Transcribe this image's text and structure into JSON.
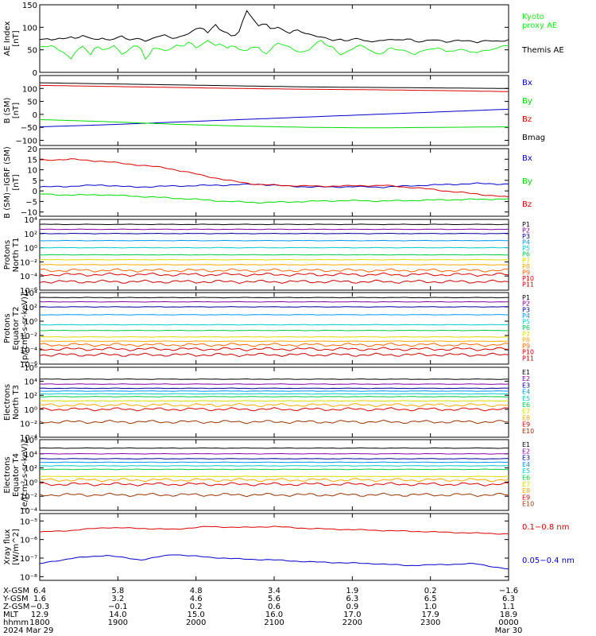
{
  "colors": {
    "black": "#000000",
    "green": "#00dd00",
    "bright_green": "#22ee22",
    "blue": "#0000cc",
    "red": "#dd0000",
    "purple": "#8800aa",
    "navy": "#000099",
    "dodger": "#0099ff",
    "cyan": "#00cccc",
    "teal_green": "#00cc44",
    "yellow": "#dddd00",
    "gold": "#ffaa00",
    "orange": "#ff6600",
    "brown": "#993300",
    "crimson": "#cc0000"
  },
  "chart_data": [
    {
      "type": "line",
      "ylabel": "AE Index\n[nT]",
      "ylim": [
        0,
        150
      ],
      "yticks": [
        "150",
        "100",
        "50",
        "0"
      ],
      "ytick_values": [
        150,
        100,
        50,
        0
      ],
      "log": false,
      "series": [
        {
          "name": "Kyoto\nproxy AE",
          "color": "bright_green",
          "values": [
            57,
            55,
            60,
            48,
            45,
            30,
            52,
            58,
            35,
            60,
            50,
            55,
            60,
            40,
            45,
            58,
            60,
            25,
            55,
            52,
            48,
            50,
            62,
            58,
            70,
            55,
            60,
            72,
            58,
            65,
            55,
            60,
            50,
            45,
            58,
            55,
            40,
            52,
            65,
            60,
            55,
            48,
            45,
            50,
            62,
            70,
            58,
            55,
            40,
            45,
            52,
            60,
            55,
            48,
            40,
            45,
            55,
            50,
            48,
            45,
            40,
            48,
            52,
            50,
            55,
            45,
            48,
            52,
            50,
            45,
            42,
            50,
            48,
            55,
            60,
            58
          ]
        },
        {
          "name": "Themis AE",
          "color": "black",
          "values": [
            72,
            75,
            70,
            78,
            74,
            80,
            73,
            82,
            76,
            72,
            78,
            70,
            75,
            80,
            72,
            74,
            76,
            70,
            74,
            80,
            82,
            76,
            78,
            82,
            88,
            95,
            100,
            85,
            110,
            92,
            88,
            78,
            90,
            140,
            120,
            105,
            110,
            95,
            100,
            92,
            88,
            96,
            90,
            84,
            80,
            78,
            75,
            72,
            74,
            70,
            72,
            75,
            70,
            68,
            72,
            70,
            74,
            70,
            72,
            76,
            70,
            68,
            70,
            72,
            70,
            68,
            70,
            72,
            70,
            68,
            66,
            70,
            72,
            70,
            68,
            72
          ]
        }
      ]
    },
    {
      "type": "line",
      "ylabel": "B (SM)\n[nT]",
      "ylim": [
        -120,
        150
      ],
      "yticks": [
        "100",
        "50",
        "0",
        "−50",
        "−100"
      ],
      "ytick_values": [
        100,
        50,
        0,
        -50,
        -100
      ],
      "log": false,
      "series": [
        {
          "name": "Bx",
          "color": "blue",
          "values": [
            -48,
            -40,
            -30,
            -20,
            -10,
            0,
            10,
            20
          ]
        },
        {
          "name": "By",
          "color": "green",
          "values": [
            -20,
            -28,
            -38,
            -45,
            -50,
            -52,
            -50,
            -48
          ]
        },
        {
          "name": "Bz",
          "color": "red",
          "values": [
            112,
            108,
            104,
            100,
            97,
            95,
            92,
            88
          ]
        },
        {
          "name": "Bmag",
          "color": "black",
          "values": [
            122,
            118,
            114,
            110,
            106,
            104,
            102,
            100
          ]
        }
      ]
    },
    {
      "type": "line",
      "ylabel": "B (SM)−IGRF (SM)\n[nT]",
      "ylim": [
        -12,
        20
      ],
      "yticks": [
        "20",
        "15",
        "10",
        "5",
        "0",
        "−5",
        "−10"
      ],
      "ytick_values": [
        20,
        15,
        10,
        5,
        0,
        -5,
        -10
      ],
      "log": false,
      "series": [
        {
          "name": "Bx",
          "color": "blue",
          "values": [
            1.8,
            2.2,
            2.8,
            1.8,
            2.2,
            2.5,
            2.8,
            3.2,
            2.2,
            1.8,
            2.0,
            1.8,
            2.5,
            3.0,
            3.5,
            3.2
          ]
        },
        {
          "name": "By",
          "color": "green",
          "values": [
            -1.5,
            -2.0,
            -1.8,
            -2.5,
            -3.2,
            -4.0,
            -5.0,
            -5.5,
            -5.2,
            -4.8,
            -4.6,
            -4.8,
            -4.5,
            -4.2,
            -4.0,
            -3.8
          ]
        },
        {
          "name": "Bz",
          "color": "red",
          "values": [
            14.5,
            15.0,
            14.0,
            12.5,
            11.0,
            8.0,
            5.0,
            3.0,
            2.5,
            2.2,
            2.4,
            2.6,
            1.5,
            0.0,
            -1.5,
            -3.0
          ]
        }
      ]
    },
    {
      "type": "line",
      "ylabel": "Protons\nNorth T1",
      "ylim": [
        -6,
        4
      ],
      "yticks": [
        "10⁴",
        "10²",
        "10⁰",
        "10⁻²",
        "10⁻⁴",
        "10⁻⁶"
      ],
      "ytick_values": [
        4,
        2,
        0,
        -2,
        -4,
        -6
      ],
      "log": true,
      "series": [
        {
          "name": "P1",
          "color": "black",
          "values": [
            3.3
          ]
        },
        {
          "name": "P2",
          "color": "purple",
          "values": [
            2.6
          ]
        },
        {
          "name": "P3",
          "color": "navy",
          "values": [
            2.0
          ]
        },
        {
          "name": "P4",
          "color": "dodger",
          "values": [
            1.0
          ]
        },
        {
          "name": "P5",
          "color": "cyan",
          "values": [
            0.0
          ]
        },
        {
          "name": "P6",
          "color": "teal_green",
          "values": [
            -1.0
          ]
        },
        {
          "name": "P7",
          "color": "yellow",
          "values": [
            -1.7
          ]
        },
        {
          "name": "P8",
          "color": "gold",
          "values": [
            -2.4
          ]
        },
        {
          "name": "P9",
          "color": "orange",
          "values": [
            -3.2
          ]
        },
        {
          "name": "P10",
          "color": "red",
          "values": [
            -3.8
          ]
        },
        {
          "name": "P11",
          "color": "crimson",
          "values": [
            -4.8
          ]
        }
      ]
    },
    {
      "type": "line",
      "ylabel": "Protons\nEquator T2\n[p/(cm²-s-sr-keV)]",
      "ylim": [
        -6,
        4
      ],
      "yticks": [
        "10⁴",
        "10²",
        "10⁰",
        "10⁻²",
        "10⁻⁴",
        "10⁻⁶"
      ],
      "ytick_values": [
        4,
        2,
        0,
        -2,
        -4,
        -6
      ],
      "log": true,
      "series": [
        {
          "name": "P1",
          "color": "black",
          "values": [
            3.3
          ]
        },
        {
          "name": "P2",
          "color": "purple",
          "values": [
            2.7
          ]
        },
        {
          "name": "P3",
          "color": "navy",
          "values": [
            2.0
          ]
        },
        {
          "name": "P4",
          "color": "dodger",
          "values": [
            0.9
          ]
        },
        {
          "name": "P5",
          "color": "cyan",
          "values": [
            -0.5
          ]
        },
        {
          "name": "P6",
          "color": "teal_green",
          "values": [
            -1.3
          ]
        },
        {
          "name": "P7",
          "color": "yellow",
          "values": [
            -2.2
          ]
        },
        {
          "name": "P8",
          "color": "gold",
          "values": [
            -2.8
          ]
        },
        {
          "name": "P9",
          "color": "orange",
          "values": [
            -3.3
          ]
        },
        {
          "name": "P10",
          "color": "red",
          "values": [
            -3.9
          ]
        },
        {
          "name": "P11",
          "color": "crimson",
          "values": [
            -4.7
          ]
        }
      ]
    },
    {
      "type": "line",
      "ylabel": "Electrons\nNorth T3",
      "ylim": [
        -4,
        6
      ],
      "yticks": [
        "10⁶",
        "10⁴",
        "10²",
        "10⁰",
        "10⁻²",
        "10⁻⁴"
      ],
      "ytick_values": [
        6,
        4,
        2,
        0,
        -2,
        -4
      ],
      "log": true,
      "series": [
        {
          "name": "E1",
          "color": "black",
          "values": [
            4.3
          ]
        },
        {
          "name": "E2",
          "color": "purple",
          "values": [
            3.6
          ]
        },
        {
          "name": "E3",
          "color": "navy",
          "values": [
            3.0
          ]
        },
        {
          "name": "E4",
          "color": "dodger",
          "values": [
            2.6
          ]
        },
        {
          "name": "E5",
          "color": "cyan",
          "values": [
            2.2
          ]
        },
        {
          "name": "E6",
          "color": "teal_green",
          "values": [
            1.8
          ]
        },
        {
          "name": "E7",
          "color": "yellow",
          "values": [
            1.2
          ]
        },
        {
          "name": "E8",
          "color": "gold",
          "values": [
            0.6
          ]
        },
        {
          "name": "E9",
          "color": "red",
          "values": [
            0.0
          ]
        },
        {
          "name": "E10",
          "color": "brown",
          "values": [
            -1.8
          ]
        }
      ]
    },
    {
      "type": "line",
      "ylabel": "Electrons\nEquator T4\n[e/(cm²-s-sr-keV)]",
      "ylim": [
        -4,
        6
      ],
      "yticks": [
        "10⁶",
        "10⁴",
        "10²",
        "10⁰",
        "10⁻²",
        "10⁻⁴"
      ],
      "ytick_values": [
        6,
        4,
        2,
        0,
        -2,
        -4
      ],
      "log": true,
      "series": [
        {
          "name": "E1",
          "color": "black",
          "values": [
            4.8
          ]
        },
        {
          "name": "E2",
          "color": "purple",
          "values": [
            4.0
          ]
        },
        {
          "name": "E3",
          "color": "navy",
          "values": [
            3.3
          ]
        },
        {
          "name": "E4",
          "color": "dodger",
          "values": [
            2.8
          ]
        },
        {
          "name": "E5",
          "color": "cyan",
          "values": [
            2.3
          ]
        },
        {
          "name": "E6",
          "color": "teal_green",
          "values": [
            1.8
          ]
        },
        {
          "name": "E7",
          "color": "yellow",
          "values": [
            0.8
          ]
        },
        {
          "name": "E8",
          "color": "gold",
          "values": [
            0.3
          ]
        },
        {
          "name": "E9",
          "color": "red",
          "values": [
            -0.3
          ]
        },
        {
          "name": "E10",
          "color": "brown",
          "values": [
            -1.8
          ]
        }
      ]
    },
    {
      "type": "line",
      "ylabel": "Xray flux\n[W/m^2]",
      "ylim": [
        -8.2,
        -4.6
      ],
      "yticks": [
        "10⁻⁵",
        "10⁻⁶",
        "10⁻⁷",
        "10⁻⁸"
      ],
      "ytick_values": [
        -5,
        -6,
        -7,
        -8
      ],
      "log": true,
      "series": [
        {
          "name": "0.1−0.8 nm",
          "color": "red",
          "values": [
            -5.6,
            -5.5,
            -5.35,
            -5.4,
            -5.45,
            -5.3,
            -5.35,
            -5.3,
            -5.4,
            -5.45,
            -5.5,
            -5.55,
            -5.6,
            -5.65,
            -5.7
          ]
        },
        {
          "name": "0.05−0.4 nm",
          "color": "blue",
          "values": [
            -7.3,
            -7.0,
            -6.85,
            -7.1,
            -6.8,
            -6.95,
            -7.05,
            -7.1,
            -7.2,
            -7.25,
            -7.3,
            -7.4,
            -7.35,
            -7.3,
            -7.6
          ]
        }
      ]
    }
  ],
  "x_axis": {
    "rows": [
      {
        "label": "X-GSM",
        "values": [
          "6.4",
          "5.8",
          "4.8",
          "3.4",
          "1.9",
          "0.2",
          "−1.6"
        ]
      },
      {
        "label": "Y-GSM",
        "values": [
          "1.6",
          "3.2",
          "4.6",
          "5.6",
          "6.3",
          "6.5",
          "6.3"
        ]
      },
      {
        "label": "Z-GSM",
        "values": [
          "−0.3",
          "−0.1",
          "0.2",
          "0.6",
          "0.9",
          "1.0",
          "1.1"
        ]
      },
      {
        "label": "MLT",
        "values": [
          "12.9",
          "14.0",
          "15.0",
          "16.0",
          "17.0",
          "17.9",
          "18.9"
        ]
      },
      {
        "label": "hhmm",
        "values": [
          "1800",
          "1900",
          "2000",
          "2100",
          "2200",
          "2300",
          "0000"
        ]
      },
      {
        "label": "2024",
        "values": [
          "Mar 29",
          "",
          "",
          "",
          "",
          "",
          "Mar 30"
        ]
      }
    ]
  }
}
